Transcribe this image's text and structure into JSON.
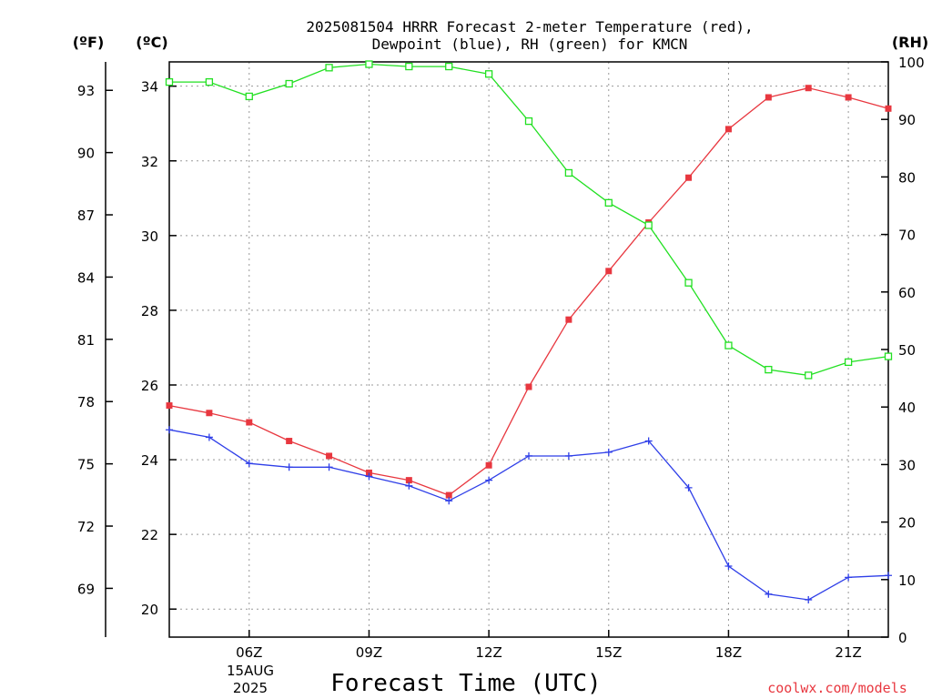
{
  "chart_data": {
    "type": "line",
    "title_line1": "2025081504 HRRR Forecast 2-meter Temperature (red),",
    "title_line2": "Dewpoint (blue), RH (green) for KMCN",
    "units": {
      "fahrenheit": "(ºF)",
      "celsius": "(ºC)",
      "rh": "(RH)"
    },
    "xlabel": "Forecast Time (UTC)",
    "date_label": [
      "15AUG",
      "2025"
    ],
    "credit": "coolwx.com/models",
    "x_hours": [
      4,
      5,
      6,
      7,
      8,
      9,
      10,
      11,
      12,
      13,
      14,
      15,
      16,
      17,
      18,
      19,
      20,
      21,
      22
    ],
    "x_range": [
      4,
      22
    ],
    "x_ticks": [
      {
        "hour": 6,
        "label": "06Z"
      },
      {
        "hour": 9,
        "label": "09Z"
      },
      {
        "hour": 12,
        "label": "12Z"
      },
      {
        "hour": 15,
        "label": "15Z"
      },
      {
        "hour": 18,
        "label": "18Z"
      },
      {
        "hour": 21,
        "label": "21Z"
      }
    ],
    "celsius_axis": {
      "range": [
        19.25,
        34.65
      ],
      "ticks": [
        "20",
        "22",
        "24",
        "26",
        "28",
        "30",
        "32",
        "34"
      ]
    },
    "fahrenheit_axis": {
      "range": [
        66.65,
        94.37
      ],
      "ticks": [
        "69",
        "72",
        "75",
        "78",
        "81",
        "84",
        "87",
        "90",
        "93"
      ]
    },
    "rh_axis": {
      "range": [
        0,
        100
      ],
      "ticks": [
        "0",
        "10",
        "20",
        "30",
        "40",
        "50",
        "60",
        "70",
        "80",
        "90",
        "100"
      ]
    },
    "grid": true,
    "series": [
      {
        "key": "temperature",
        "axis": "celsius",
        "color": "#e8373f",
        "marker": "filled-square",
        "values": [
          25.45,
          25.25,
          25.0,
          24.5,
          24.1,
          23.65,
          23.45,
          23.05,
          23.85,
          25.95,
          27.75,
          29.05,
          30.35,
          31.55,
          32.85,
          33.7,
          33.95,
          33.7,
          33.4
        ]
      },
      {
        "key": "dewpoint",
        "axis": "celsius",
        "color": "#2f3fe8",
        "marker": "plus",
        "values": [
          24.8,
          24.6,
          23.9,
          23.8,
          23.8,
          23.55,
          23.3,
          22.9,
          23.45,
          24.1,
          24.1,
          24.2,
          24.5,
          23.25,
          21.15,
          20.4,
          20.25,
          20.85,
          20.9
        ]
      },
      {
        "key": "rh",
        "axis": "rh",
        "color": "#22e022",
        "marker": "open-square",
        "values": [
          96.5,
          96.5,
          94.0,
          96.2,
          99.0,
          99.6,
          99.2,
          99.2,
          97.9,
          89.7,
          80.7,
          75.5,
          71.6,
          61.6,
          50.7,
          46.5,
          45.5,
          47.8,
          48.8
        ]
      }
    ]
  }
}
